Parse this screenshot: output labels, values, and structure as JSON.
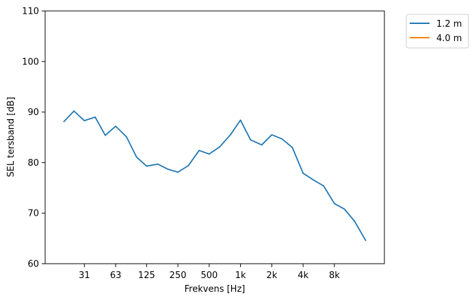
{
  "chart_data": {
    "type": "line",
    "xlabel": "Frekvens [Hz]",
    "ylabel": "SEL tersband [dB]",
    "ylim": [
      60,
      110
    ],
    "yticks": [
      60,
      70,
      80,
      90,
      100,
      110
    ],
    "x_scale": "log",
    "x_tick_values": [
      31.5,
      63,
      125,
      250,
      500,
      1000,
      2000,
      4000,
      8000
    ],
    "x_tick_labels": [
      "31",
      "63",
      "125",
      "250",
      "500",
      "1k",
      "2k",
      "4k",
      "8k"
    ],
    "legend_position": "outside upper-right",
    "grid": false,
    "series": [
      {
        "name": "1.2 m",
        "color": "#1f77b4",
        "x": [
          20,
          25,
          31.5,
          40,
          50,
          63,
          80,
          100,
          125,
          160,
          200,
          250,
          315,
          400,
          500,
          630,
          800,
          1000,
          1250,
          1600,
          2000,
          2500,
          3150,
          4000,
          5000,
          6300,
          8000,
          10000,
          12500,
          16000
        ],
        "y": [
          88.1,
          90.2,
          88.3,
          89.0,
          85.4,
          87.2,
          85.1,
          81.1,
          79.3,
          79.7,
          78.7,
          78.1,
          79.4,
          82.4,
          81.7,
          83.1,
          85.5,
          88.4,
          84.5,
          83.5,
          85.5,
          84.7,
          83.0,
          77.9,
          76.6,
          75.4,
          71.9,
          70.8,
          68.4,
          64.6
        ]
      },
      {
        "name": "4.0 m",
        "color": "#ff7f0e",
        "x": [],
        "y": []
      }
    ]
  }
}
